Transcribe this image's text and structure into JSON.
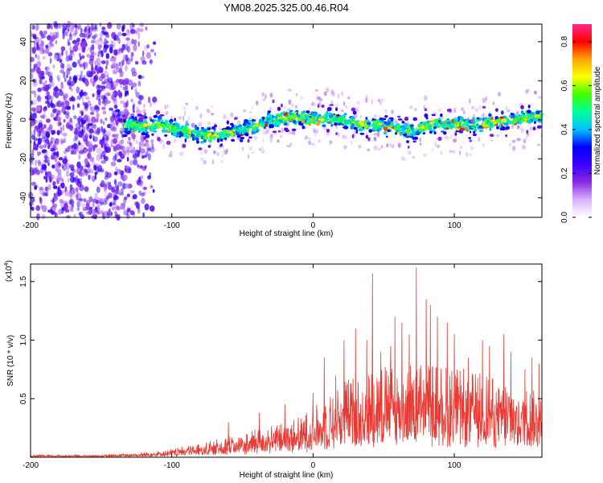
{
  "figure": {
    "title": "YM08.2025.325.00.46.R04"
  },
  "chart_data": [
    {
      "type": "heatmap",
      "xlabel": "Height of straight line (km)",
      "ylabel": "Frequency (Hz)",
      "xlim": [
        -200,
        162
      ],
      "ylim": [
        -50,
        49
      ],
      "xticks": [
        -200,
        -100,
        0,
        100
      ],
      "yticks": [
        -40,
        -20,
        0,
        20,
        40
      ],
      "grid": false,
      "description_ridge": [
        [
          -134,
          -3
        ],
        [
          -120,
          -3
        ],
        [
          -110,
          -3
        ],
        [
          -100,
          -4
        ],
        [
          -90,
          -6
        ],
        [
          -80,
          -8
        ],
        [
          -70,
          -8
        ],
        [
          -60,
          -7
        ],
        [
          -50,
          -5
        ],
        [
          -40,
          -3
        ],
        [
          -30,
          0
        ],
        [
          -20,
          1
        ],
        [
          -10,
          1
        ],
        [
          0,
          0
        ],
        [
          10,
          1
        ],
        [
          20,
          0
        ],
        [
          30,
          -2
        ],
        [
          40,
          -3
        ],
        [
          50,
          -3
        ],
        [
          60,
          -5
        ],
        [
          70,
          -6
        ],
        [
          80,
          -3
        ],
        [
          90,
          -2
        ],
        [
          100,
          -2
        ],
        [
          110,
          -3
        ],
        [
          120,
          -2
        ],
        [
          130,
          -1
        ],
        [
          140,
          0
        ],
        [
          150,
          1
        ],
        [
          160,
          2
        ]
      ],
      "noise_region_x": [
        -200,
        -134
      ],
      "colorbar": {
        "label": "Normalized spectral amplitude",
        "range": [
          0.0,
          0.88
        ],
        "ticks": [
          0.0,
          0.2,
          0.4,
          0.6,
          0.8
        ],
        "tick_labels": [
          "0.0",
          "0.2",
          "0.4",
          "0.6",
          "0.8"
        ],
        "colors": [
          "#ffffff",
          "#d9b3ff",
          "#8a2be2",
          "#3b00ff",
          "#0000ff",
          "#00bfff",
          "#00ffa0",
          "#40ff00",
          "#ffff00",
          "#ffa500",
          "#ff0000",
          "#ff2a8a"
        ]
      }
    },
    {
      "type": "line",
      "xlabel": "Height of straight line (km)",
      "ylabel": "SNR (10 * v/v)",
      "scale_label": "(x10",
      "scale_exponent": "4",
      "xlim": [
        -200,
        162
      ],
      "ylim": [
        0,
        1.65
      ],
      "xticks": [
        -200,
        -100,
        0,
        100
      ],
      "yticks": [
        0.5,
        1.0,
        1.5
      ],
      "ytick_labels": [
        "0.5",
        "1.0",
        "1.5"
      ],
      "color": "#e83a32",
      "envelope": [
        [
          -200,
          0.02
        ],
        [
          -150,
          0.02
        ],
        [
          -120,
          0.04
        ],
        [
          -100,
          0.07
        ],
        [
          -80,
          0.12
        ],
        [
          -60,
          0.18
        ],
        [
          -40,
          0.24
        ],
        [
          -20,
          0.3
        ],
        [
          -10,
          0.35
        ],
        [
          0,
          0.42
        ],
        [
          10,
          0.55
        ],
        [
          20,
          0.65
        ],
        [
          30,
          0.7
        ],
        [
          50,
          0.8
        ],
        [
          70,
          0.85
        ],
        [
          90,
          0.8
        ],
        [
          110,
          0.75
        ],
        [
          130,
          0.7
        ],
        [
          150,
          0.6
        ],
        [
          162,
          0.55
        ]
      ],
      "peaks": [
        [
          -60,
          0.3
        ],
        [
          -38,
          0.38
        ],
        [
          -20,
          0.45
        ],
        [
          0,
          0.55
        ],
        [
          8,
          0.85
        ],
        [
          16,
          0.7
        ],
        [
          22,
          1.0
        ],
        [
          30,
          1.1
        ],
        [
          38,
          1.0
        ],
        [
          42,
          1.57
        ],
        [
          48,
          0.9
        ],
        [
          55,
          0.95
        ],
        [
          58,
          1.2
        ],
        [
          63,
          1.15
        ],
        [
          68,
          1.05
        ],
        [
          73,
          1.62
        ],
        [
          80,
          1.35
        ],
        [
          83,
          1.3
        ],
        [
          88,
          1.2
        ],
        [
          95,
          1.15
        ],
        [
          100,
          1.05
        ],
        [
          110,
          0.85
        ],
        [
          120,
          1.0
        ],
        [
          125,
          0.95
        ],
        [
          135,
          1.05
        ],
        [
          140,
          0.9
        ],
        [
          150,
          0.75
        ],
        [
          155,
          0.85
        ],
        [
          160,
          0.8
        ]
      ]
    }
  ]
}
